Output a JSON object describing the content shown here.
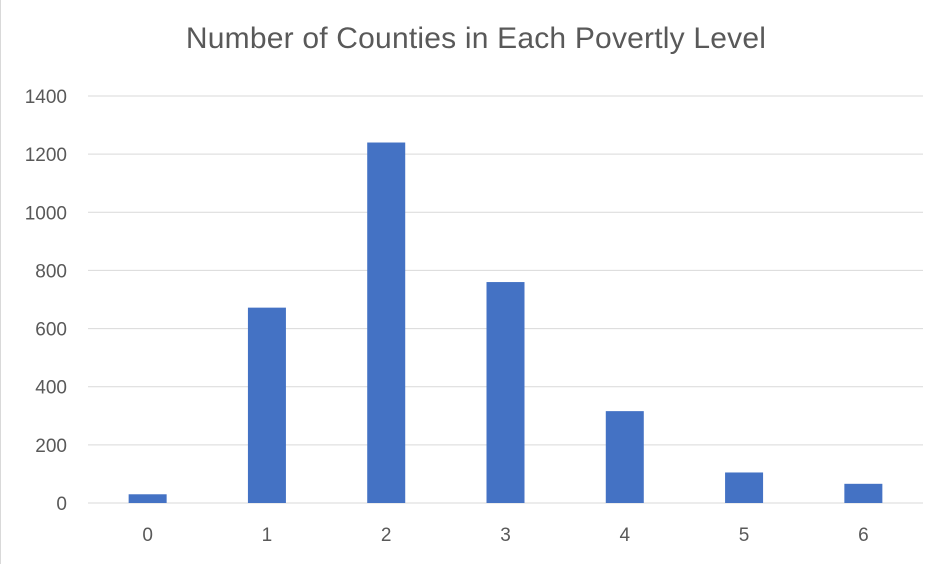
{
  "chart_data": {
    "type": "bar",
    "title": "Number of Counties in Each Povertly Level",
    "xlabel": "",
    "ylabel": "",
    "categories": [
      "0",
      "1",
      "2",
      "3",
      "4",
      "5",
      "6"
    ],
    "values": [
      30,
      672,
      1240,
      760,
      316,
      105,
      66
    ],
    "ylim": [
      0,
      1400
    ],
    "yticks": [
      "0",
      "200",
      "400",
      "600",
      "800",
      "1000",
      "1200",
      "1400"
    ],
    "grid": true,
    "legend": "none",
    "colors": {
      "bar": "#4472C4",
      "grid": "#D9D9D9",
      "text": "#595959"
    }
  }
}
